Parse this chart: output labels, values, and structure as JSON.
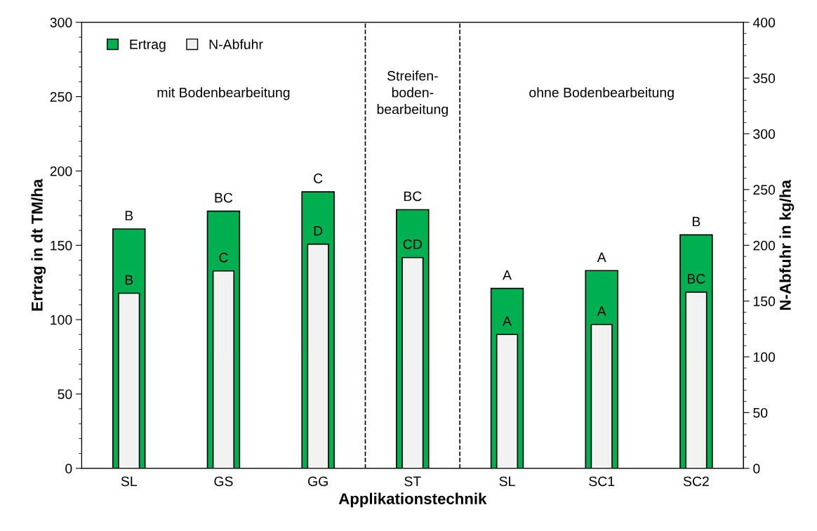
{
  "chart_data": {
    "type": "bar",
    "xlabel": "Applikationstechnik",
    "ylabel": "Ertrag in dt TM/ha",
    "y2label": "N-Abfuhr in kg/ha",
    "categories": [
      "SL",
      "GS",
      "GG",
      "ST",
      "SL",
      "SC1",
      "SC2"
    ],
    "series": [
      {
        "name": "Ertrag",
        "color": "#00b050",
        "values": [
          161,
          173,
          186,
          174,
          121,
          133,
          157
        ],
        "value_labels": [
          "B",
          "BC",
          "C",
          "BC",
          "A",
          "A",
          "B"
        ]
      },
      {
        "name": "N-Abfuhr",
        "color": "#f2f2f2",
        "axis": "y2",
        "values": [
          157,
          177,
          201,
          189,
          120,
          129,
          158
        ],
        "value_labels": [
          "B",
          "C",
          "D",
          "CD",
          "A",
          "A",
          "BC"
        ]
      }
    ],
    "ylim": [
      0,
      300
    ],
    "yticks": [
      0,
      50,
      100,
      150,
      200,
      250,
      300
    ],
    "y2lim": [
      0,
      400
    ],
    "y2ticks": [
      0,
      50,
      100,
      150,
      200,
      250,
      300,
      350,
      400
    ],
    "annotations": [
      "mit Bodenbearbeitung",
      "Streifen-\nboden-\nbearbeitung",
      "ohne Bodenbearbeitung"
    ],
    "legend": "top left",
    "grid": false
  }
}
